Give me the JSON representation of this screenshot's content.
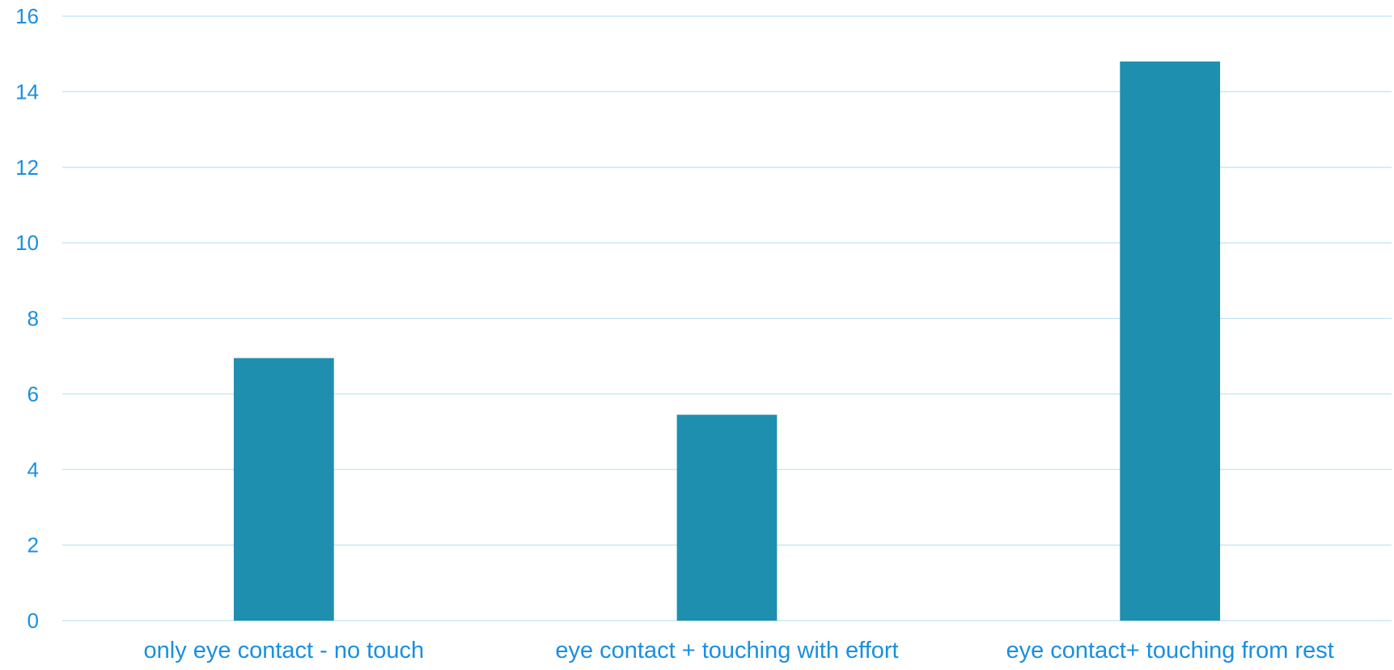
{
  "chart_data": {
    "type": "bar",
    "title": "",
    "xlabel": "",
    "ylabel": "",
    "categories": [
      "only eye contact - no touch",
      "eye contact + touching with effort",
      "eye contact+ touching from rest"
    ],
    "values": [
      6.95,
      5.45,
      14.8
    ],
    "ylim": [
      0,
      16
    ],
    "yticks": [
      "0",
      "2",
      "4",
      "6",
      "8",
      "10",
      "12",
      "14",
      "16"
    ],
    "grid": true,
    "legend": "none",
    "colors": {
      "bar": "#1f8fb0",
      "gridline": "#bfe3f5",
      "tick_label": "#1a8fe0"
    }
  }
}
